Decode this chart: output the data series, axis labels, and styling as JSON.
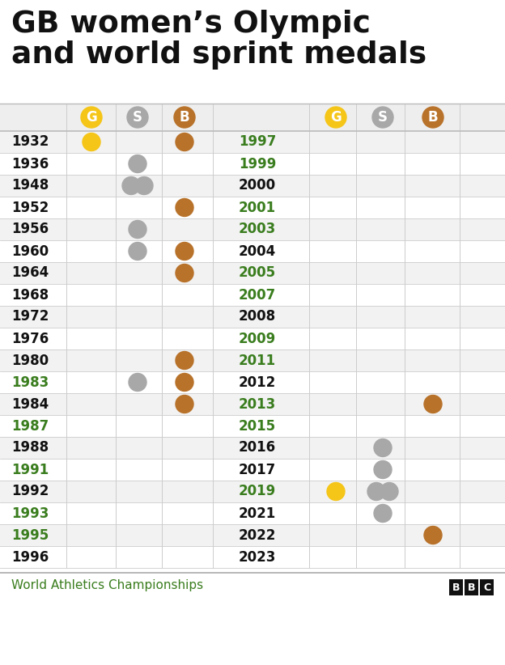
{
  "title_line1": "GB women’s Olympic",
  "title_line2": "and world sprint medals",
  "footer_text": "World Athletics Championships",
  "gold_color": "#F5C518",
  "silver_color": "#A8A8A8",
  "bronze_color": "#B8722A",
  "row_color_odd": "#F2F2F2",
  "row_color_even": "#FFFFFF",
  "header_bg": "#EEEEEE",
  "green_year_color": "#3A7D1E",
  "black_year_color": "#111111",
  "left_years": [
    "1932",
    "1936",
    "1948",
    "1952",
    "1956",
    "1960",
    "1964",
    "1968",
    "1972",
    "1976",
    "1980",
    "1983",
    "1984",
    "1987",
    "1988",
    "1991",
    "1992",
    "1993",
    "1995",
    "1996"
  ],
  "left_year_green": [
    false,
    false,
    false,
    false,
    false,
    false,
    false,
    false,
    false,
    false,
    false,
    true,
    false,
    true,
    false,
    true,
    false,
    true,
    true,
    false
  ],
  "right_years": [
    "1997",
    "1999",
    "2000",
    "2001",
    "2003",
    "2004",
    "2005",
    "2007",
    "2008",
    "2009",
    "2011",
    "2012",
    "2013",
    "2015",
    "2016",
    "2017",
    "2019",
    "2021",
    "2022",
    "2023"
  ],
  "right_year_green": [
    true,
    true,
    false,
    true,
    true,
    false,
    true,
    true,
    false,
    true,
    true,
    false,
    true,
    true,
    false,
    false,
    true,
    false,
    false,
    false
  ],
  "left_medals": {
    "1932": {
      "G": 1,
      "S": 0,
      "B": 1
    },
    "1936": {
      "G": 0,
      "S": 1,
      "B": 0
    },
    "1948": {
      "G": 0,
      "S": 2,
      "B": 0
    },
    "1952": {
      "G": 0,
      "S": 0,
      "B": 1
    },
    "1956": {
      "G": 0,
      "S": 1,
      "B": 0
    },
    "1960": {
      "G": 0,
      "S": 1,
      "B": 1
    },
    "1964": {
      "G": 0,
      "S": 0,
      "B": 1
    },
    "1968": {
      "G": 0,
      "S": 0,
      "B": 0
    },
    "1972": {
      "G": 0,
      "S": 0,
      "B": 0
    },
    "1976": {
      "G": 0,
      "S": 0,
      "B": 0
    },
    "1980": {
      "G": 0,
      "S": 0,
      "B": 1
    },
    "1983": {
      "G": 0,
      "S": 1,
      "B": 1
    },
    "1984": {
      "G": 0,
      "S": 0,
      "B": 1
    },
    "1987": {
      "G": 0,
      "S": 0,
      "B": 0
    },
    "1988": {
      "G": 0,
      "S": 0,
      "B": 0
    },
    "1991": {
      "G": 0,
      "S": 0,
      "B": 0
    },
    "1992": {
      "G": 0,
      "S": 0,
      "B": 0
    },
    "1993": {
      "G": 0,
      "S": 0,
      "B": 0
    },
    "1995": {
      "G": 0,
      "S": 0,
      "B": 0
    },
    "1996": {
      "G": 0,
      "S": 0,
      "B": 0
    }
  },
  "right_medals": {
    "1997": {
      "G": 0,
      "S": 0,
      "B": 0
    },
    "1999": {
      "G": 0,
      "S": 0,
      "B": 0
    },
    "2000": {
      "G": 0,
      "S": 0,
      "B": 0
    },
    "2001": {
      "G": 0,
      "S": 0,
      "B": 0
    },
    "2003": {
      "G": 0,
      "S": 0,
      "B": 0
    },
    "2004": {
      "G": 0,
      "S": 0,
      "B": 0
    },
    "2005": {
      "G": 0,
      "S": 0,
      "B": 0
    },
    "2007": {
      "G": 0,
      "S": 0,
      "B": 0
    },
    "2008": {
      "G": 0,
      "S": 0,
      "B": 0
    },
    "2009": {
      "G": 0,
      "S": 0,
      "B": 0
    },
    "2011": {
      "G": 0,
      "S": 0,
      "B": 0
    },
    "2012": {
      "G": 0,
      "S": 0,
      "B": 0
    },
    "2013": {
      "G": 0,
      "S": 0,
      "B": 1
    },
    "2015": {
      "G": 0,
      "S": 0,
      "B": 0
    },
    "2016": {
      "G": 0,
      "S": 1,
      "B": 0
    },
    "2017": {
      "G": 0,
      "S": 1,
      "B": 0
    },
    "2019": {
      "G": 1,
      "S": 2,
      "B": 0
    },
    "2021": {
      "G": 0,
      "S": 1,
      "B": 0
    },
    "2022": {
      "G": 0,
      "S": 0,
      "B": 1
    },
    "2023": {
      "G": 0,
      "S": 0,
      "B": 0
    }
  }
}
